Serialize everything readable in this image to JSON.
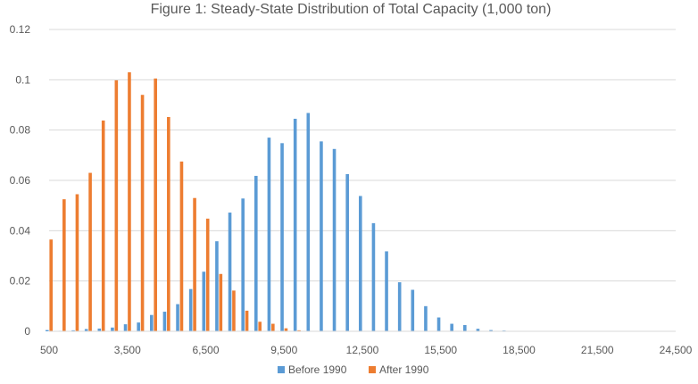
{
  "chart_data": {
    "type": "bar",
    "title": "Figure 1: Steady-State Distribution of Total Capacity (1,000 ton)",
    "xlabel": "",
    "ylabel": "",
    "x": [
      500,
      1000,
      1500,
      2000,
      2500,
      3000,
      3500,
      4000,
      4500,
      5000,
      5500,
      6000,
      6500,
      7000,
      7500,
      8000,
      8500,
      9000,
      9500,
      10000,
      10500,
      11000,
      11500,
      12000,
      12500,
      13000,
      13500,
      14000,
      14500,
      15000,
      15500,
      16000,
      16500,
      17000,
      17500,
      18000,
      18500,
      19000,
      19500,
      20000,
      20500,
      21000,
      21500,
      22000,
      22500,
      23000,
      23500,
      24000,
      24500
    ],
    "x_tick_labels": [
      "500",
      "3,500",
      "6,500",
      "9,500",
      "12,500",
      "15,500",
      "18,500",
      "21,500",
      "24,500"
    ],
    "x_tick_values": [
      500,
      3500,
      6500,
      9500,
      12500,
      15500,
      18500,
      21500,
      24500
    ],
    "ylim": [
      0,
      0.12
    ],
    "y_tick_labels": [
      "0",
      "0.02",
      "0.04",
      "0.06",
      "0.08",
      "0.1",
      "0.12"
    ],
    "y_tick_values": [
      0,
      0.02,
      0.04,
      0.06,
      0.08,
      0.1,
      0.12
    ],
    "grid": true,
    "legend_position": "bottom",
    "series": [
      {
        "name": "Before 1990",
        "color": "#5b9bd5",
        "values": [
          0.0005,
          0.0002,
          0.0004,
          0.0009,
          0.0011,
          0.0015,
          0.0028,
          0.0035,
          0.0065,
          0.0078,
          0.0108,
          0.0168,
          0.0237,
          0.0358,
          0.0472,
          0.0528,
          0.0618,
          0.077,
          0.0748,
          0.0845,
          0.0868,
          0.0755,
          0.0725,
          0.0625,
          0.0538,
          0.043,
          0.0318,
          0.0195,
          0.0165,
          0.01,
          0.0055,
          0.003,
          0.0025,
          0.001,
          0.0005,
          0.0003,
          0.0001,
          0.0001,
          0,
          0,
          0,
          0,
          0,
          0,
          0,
          0,
          0,
          0,
          0
        ]
      },
      {
        "name": "After 1990",
        "color": "#ed7d31",
        "values": [
          0.0365,
          0.0525,
          0.0545,
          0.063,
          0.0838,
          0.0998,
          0.103,
          0.094,
          0.1005,
          0.0852,
          0.0675,
          0.053,
          0.0448,
          0.0228,
          0.0162,
          0.0082,
          0.0038,
          0.003,
          0.0012,
          0.0004,
          0.0001,
          0,
          0,
          0,
          0,
          0,
          0,
          0,
          0,
          0,
          0,
          0,
          0,
          0,
          0,
          0,
          0,
          0,
          0,
          0,
          0,
          0,
          0,
          0,
          0,
          0,
          0,
          0,
          0
        ]
      }
    ]
  }
}
